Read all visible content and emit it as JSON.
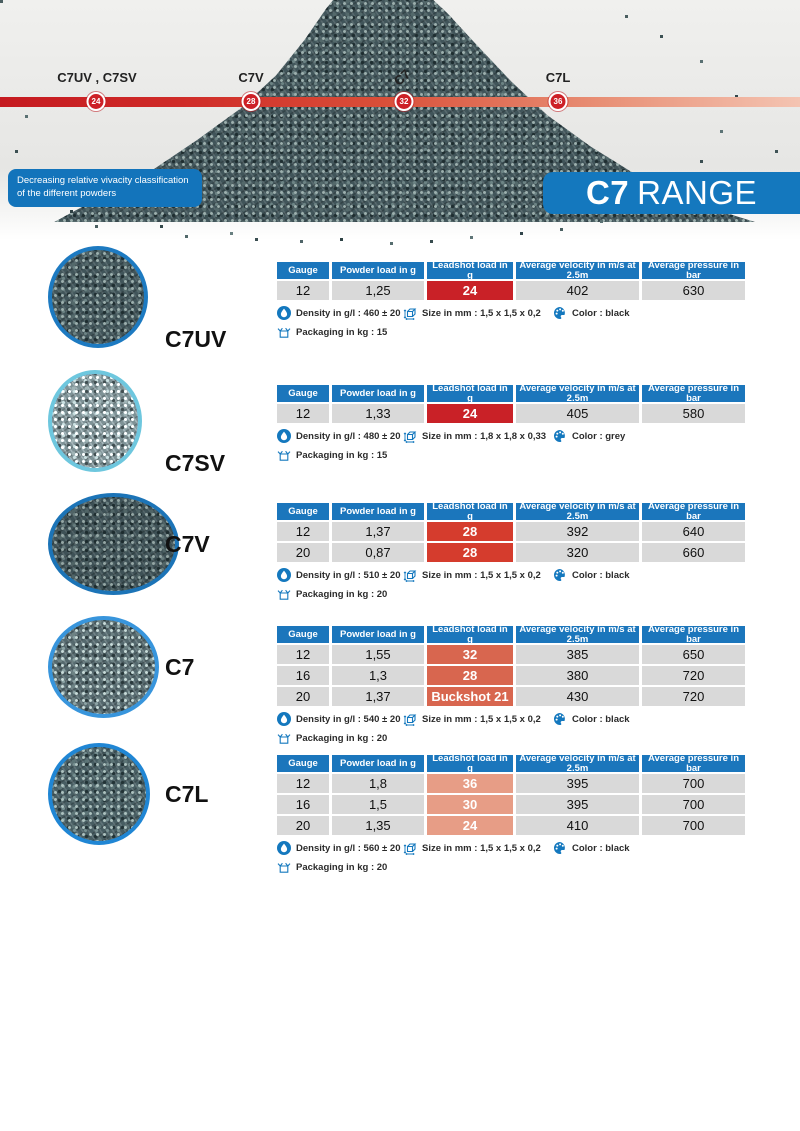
{
  "note": {
    "line1": "Decreasing relative vivacity classification",
    "line2": "of the different powders"
  },
  "banner": {
    "bold": "C7",
    "regular": "RANGE"
  },
  "scale": {
    "items": [
      {
        "label": "C7UV , C7SV",
        "value": "24"
      },
      {
        "label": "C7V",
        "value": "28"
      },
      {
        "label": "C7",
        "value": "32"
      },
      {
        "label": "C7L",
        "value": "36"
      }
    ],
    "bar_colors": [
      "#c51a20",
      "#f4c4b2"
    ]
  },
  "table_headers": [
    "Gauge",
    "Powder load in g",
    "Leadshot load in g",
    "Average velocity in m/s at 2.5m",
    "Average pressure in bar"
  ],
  "colors": {
    "header_blue": "#1b76bc",
    "banner_blue": "#1478be",
    "row_grey": "#d9d9d9"
  },
  "products": [
    {
      "name": "C7UV",
      "leadshot_color": "#c92127",
      "rows": [
        {
          "gauge": "12",
          "powder_load": "1,25",
          "leadshot": "24",
          "velocity": "402",
          "pressure": "630"
        }
      ],
      "density": "Density in g/l : 460 ± 20",
      "size": "Size in mm : 1,5 x 1,5 x 0,2",
      "color": "Color : black",
      "packaging": "Packaging in kg : 15"
    },
    {
      "name": "C7SV",
      "leadshot_color": "#c92127",
      "rows": [
        {
          "gauge": "12",
          "powder_load": "1,33",
          "leadshot": "24",
          "velocity": "405",
          "pressure": "580"
        }
      ],
      "density": "Density in g/l : 480 ± 20",
      "size": "Size in mm : 1,8 x 1,8 x 0,33",
      "color": "Color : grey",
      "packaging": "Packaging in kg : 15"
    },
    {
      "name": "C7V",
      "leadshot_color": "#d53c2d",
      "rows": [
        {
          "gauge": "12",
          "powder_load": "1,37",
          "leadshot": "28",
          "velocity": "392",
          "pressure": "640"
        },
        {
          "gauge": "20",
          "powder_load": "0,87",
          "leadshot": "28",
          "velocity": "320",
          "pressure": "660"
        }
      ],
      "density": "Density in g/l : 510 ± 20",
      "size": "Size in mm : 1,5 x 1,5 x 0,2",
      "color": "Color : black",
      "packaging": "Packaging in kg : 20"
    },
    {
      "name": "C7",
      "leadshot_color": "#d8664f",
      "rows": [
        {
          "gauge": "12",
          "powder_load": "1,55",
          "leadshot": "32",
          "velocity": "385",
          "pressure": "650"
        },
        {
          "gauge": "16",
          "powder_load": "1,3",
          "leadshot": "28",
          "velocity": "380",
          "pressure": "720"
        },
        {
          "gauge": "20",
          "powder_load": "1,37",
          "leadshot": "Buckshot 21",
          "velocity": "430",
          "pressure": "720"
        }
      ],
      "density": "Density in g/l : 540 ± 20",
      "size": "Size in mm : 1,5 x 1,5 x 0,2",
      "color": "Color : black",
      "packaging": "Packaging in kg : 20"
    },
    {
      "name": "C7L",
      "leadshot_color": "#e79d86",
      "rows": [
        {
          "gauge": "12",
          "powder_load": "1,8",
          "leadshot": "36",
          "velocity": "395",
          "pressure": "700"
        },
        {
          "gauge": "16",
          "powder_load": "1,5",
          "leadshot": "30",
          "velocity": "395",
          "pressure": "700"
        },
        {
          "gauge": "20",
          "powder_load": "1,35",
          "leadshot": "24",
          "velocity": "410",
          "pressure": "700"
        }
      ],
      "density": "Density in g/l : 560 ± 20",
      "size": "Size in mm : 1,5 x 1,5 x 0,2",
      "color": "Color : black",
      "packaging": "Packaging in kg : 20"
    }
  ]
}
